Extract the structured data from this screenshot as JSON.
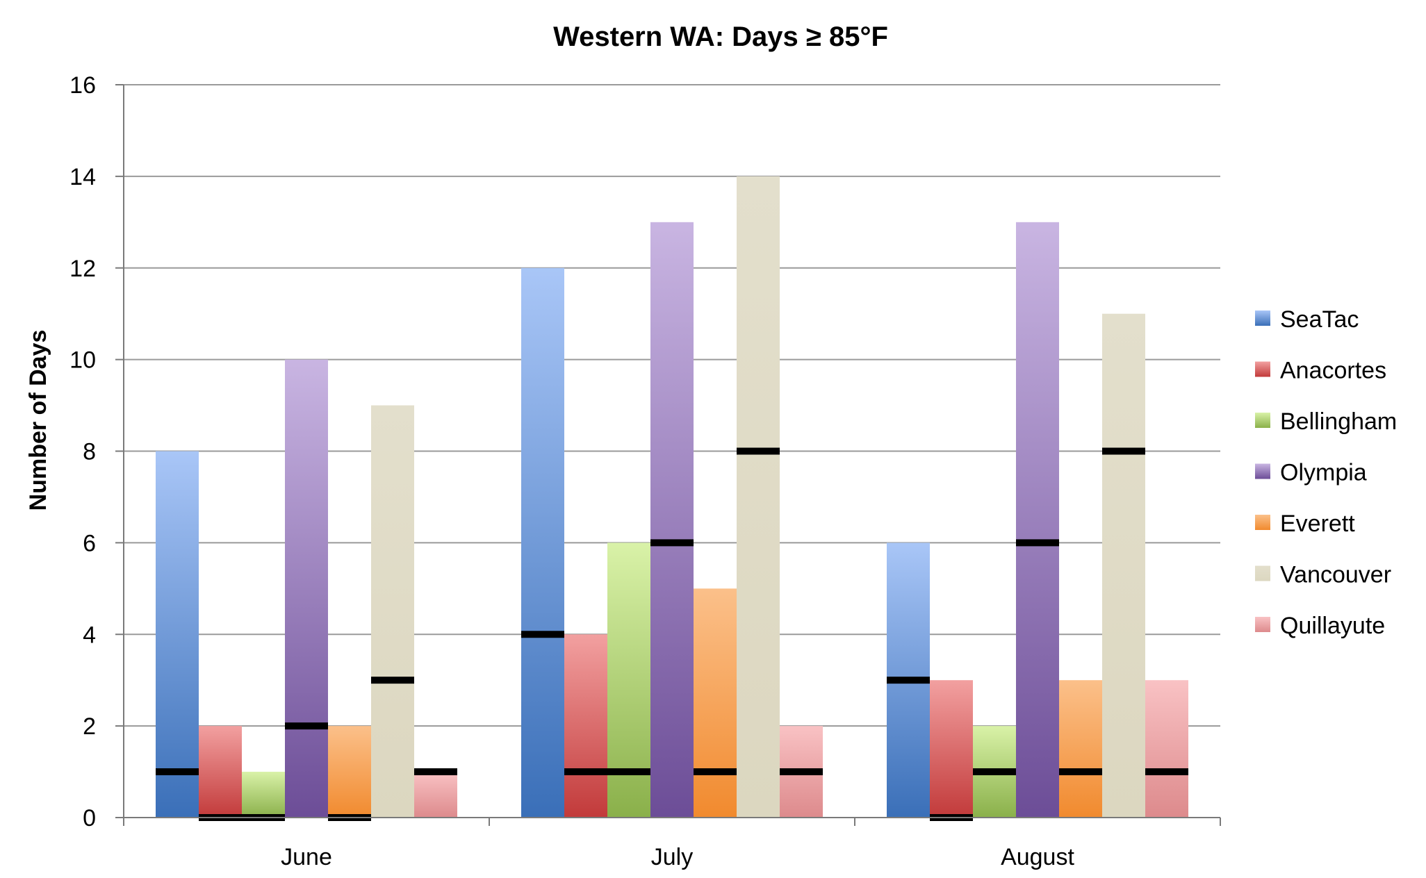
{
  "chart_data": {
    "type": "bar",
    "title": "Western WA: Days ≥ 85°F",
    "xlabel": "",
    "ylabel": "Number of Days",
    "ylim": [
      0,
      16
    ],
    "yticks": [
      "0",
      "2",
      "4",
      "6",
      "8",
      "10",
      "12",
      "14",
      "16"
    ],
    "grid": true,
    "legend_position": "right",
    "categories": [
      "June",
      "July",
      "August"
    ],
    "series": [
      {
        "name": "SeaTac",
        "values": [
          8,
          12,
          6
        ],
        "markers": [
          1,
          4,
          3
        ],
        "color_top": "#a9c6f7",
        "color_bottom": "#3a6fb8"
      },
      {
        "name": "Anacortes",
        "values": [
          2,
          4,
          3
        ],
        "markers": [
          0,
          1,
          0
        ],
        "color_top": "#f2a0a0",
        "color_bottom": "#c23a3a"
      },
      {
        "name": "Bellingham",
        "values": [
          1,
          6,
          2
        ],
        "markers": [
          0,
          1,
          1
        ],
        "color_top": "#d9f2a8",
        "color_bottom": "#8ab04a"
      },
      {
        "name": "Olympia",
        "values": [
          10,
          13,
          13
        ],
        "markers": [
          2,
          6,
          6
        ],
        "color_top": "#c9b5e2",
        "color_bottom": "#6c4d97"
      },
      {
        "name": "Everett",
        "values": [
          2,
          5,
          3
        ],
        "markers": [
          0,
          1,
          1
        ],
        "color_top": "#fbc08a",
        "color_bottom": "#f18a2e"
      },
      {
        "name": "Vancouver",
        "values": [
          9,
          14,
          11
        ],
        "markers": [
          3,
          8,
          8
        ],
        "color_top": "#e3dfcc",
        "color_bottom": "#dcd7c0"
      },
      {
        "name": "Quillayute",
        "values": [
          1,
          2,
          3
        ],
        "markers": [
          1,
          1,
          1
        ],
        "color_top": "#f9c2c4",
        "color_bottom": "#dd8a8c"
      }
    ]
  }
}
